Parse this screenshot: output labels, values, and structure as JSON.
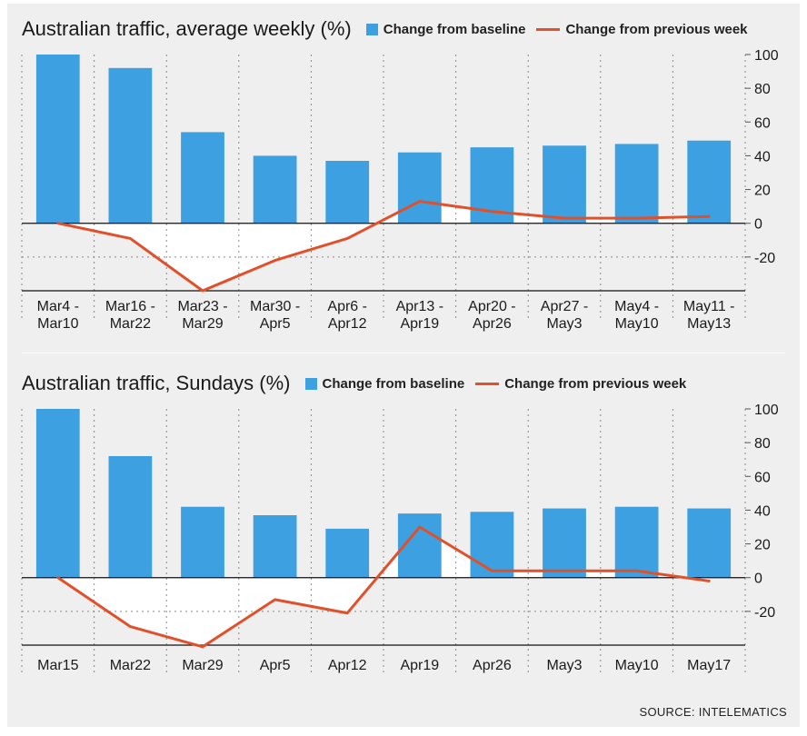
{
  "legend": {
    "bar_label": "Change from baseline",
    "line_label": "Change from previous week"
  },
  "colors": {
    "bar": "#3da0e1",
    "line": "#e0502a",
    "background": "#efefef"
  },
  "source": "SOURCE: INTELEMATICS",
  "chart_data": [
    {
      "type": "bar",
      "title": "Australian traffic, average weekly (%)",
      "categories": [
        [
          "Mar4 -",
          "Mar10"
        ],
        [
          "Mar16 -",
          "Mar22"
        ],
        [
          "Mar23 -",
          "Mar29"
        ],
        [
          "Mar30 -",
          "Apr5"
        ],
        [
          "Apr6 -",
          "Apr12"
        ],
        [
          "Apr13 -",
          "Apr19"
        ],
        [
          "Apr20 -",
          "Apr26"
        ],
        [
          "Apr27 -",
          "May3"
        ],
        [
          "May4 -",
          "May10"
        ],
        [
          "May11 -",
          "May13"
        ]
      ],
      "series": [
        {
          "name": "Change from baseline",
          "type": "bar",
          "values": [
            100,
            92,
            54,
            40,
            37,
            42,
            45,
            46,
            47,
            49
          ]
        },
        {
          "name": "Change from previous week",
          "type": "line",
          "values": [
            0,
            -9,
            -40,
            -22,
            -9,
            13,
            7,
            3,
            3,
            4
          ]
        }
      ],
      "yticks": [
        100,
        80,
        60,
        40,
        20,
        0,
        -20
      ],
      "ylim": [
        -40,
        100
      ],
      "y_axis_position": "right"
    },
    {
      "type": "bar",
      "title": "Australian traffic, Sundays (%)",
      "categories": [
        [
          "Mar15"
        ],
        [
          "Mar22"
        ],
        [
          "Mar29"
        ],
        [
          "Apr5"
        ],
        [
          "Apr12"
        ],
        [
          "Apr19"
        ],
        [
          "Apr26"
        ],
        [
          "May3"
        ],
        [
          "May10"
        ],
        [
          "May17"
        ]
      ],
      "series": [
        {
          "name": "Change from baseline",
          "type": "bar",
          "values": [
            102,
            72,
            42,
            37,
            29,
            38,
            39,
            41,
            42,
            41
          ]
        },
        {
          "name": "Change from previous week",
          "type": "line",
          "values": [
            0,
            -29,
            -41,
            -13,
            -21,
            30,
            4,
            4,
            4,
            -2
          ]
        }
      ],
      "yticks": [
        100,
        80,
        60,
        40,
        20,
        0,
        -20
      ],
      "ylim": [
        -40,
        100
      ],
      "y_axis_position": "right"
    }
  ]
}
